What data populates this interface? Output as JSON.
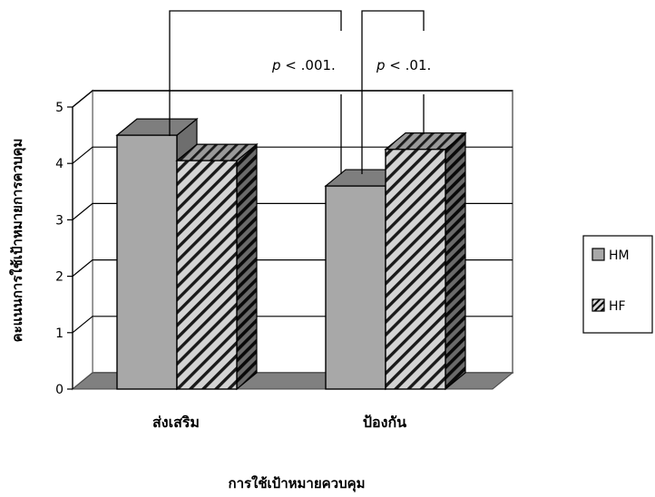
{
  "chart_data": {
    "type": "bar",
    "categories": [
      "ส่งเสริม",
      "ป้องกัน"
    ],
    "series": [
      {
        "name": "HM",
        "values": [
          4.5,
          3.6
        ]
      },
      {
        "name": "HF",
        "values": [
          4.05,
          4.25
        ]
      }
    ],
    "xlabel": "การใช้เป้าหมายควบคุม",
    "ylabel": "คะแนนการใช้เป้าหมายการควบคุม",
    "ylim": [
      0,
      5
    ],
    "yticks": [
      "0",
      "1",
      "2",
      "3",
      "4",
      "5"
    ],
    "grid": true,
    "legend": "right",
    "annotations": [
      {
        "text_prefix": "p",
        "text": " < .001."
      },
      {
        "text_prefix": "p",
        "text": " < .01."
      }
    ],
    "colors": {
      "HM": "#a8a8a8",
      "HF": "#cccccc",
      "wall": "#c0c0c0",
      "floor": "#808080"
    }
  }
}
